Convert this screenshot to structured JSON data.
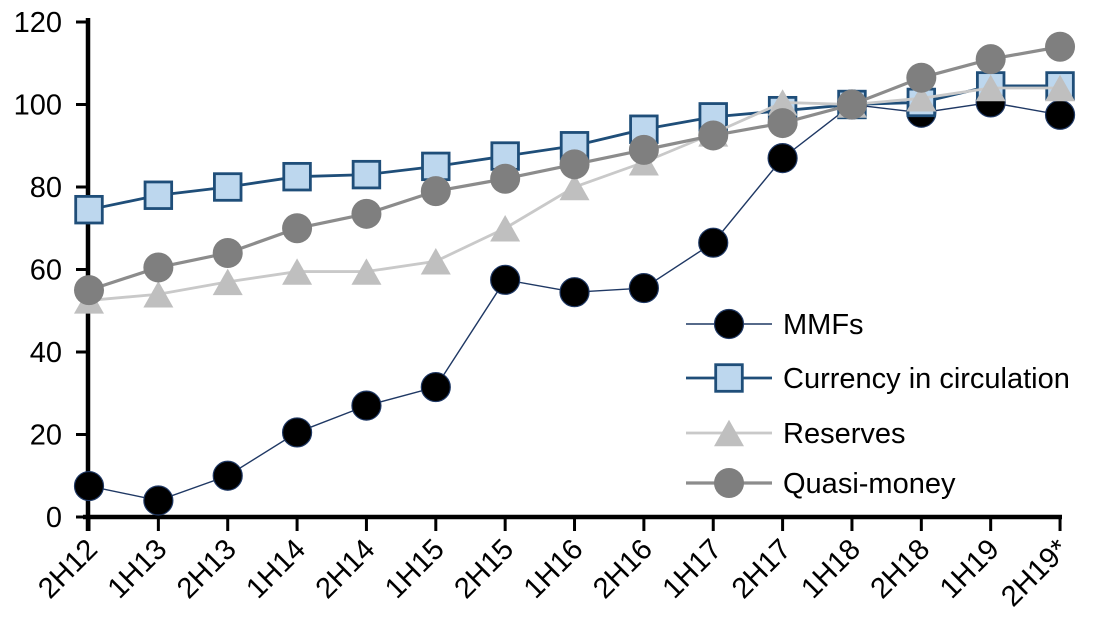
{
  "chart_data": {
    "type": "line",
    "title": "",
    "xlabel": "",
    "ylabel": "",
    "ylim": [
      0,
      120
    ],
    "yticks": [
      0,
      20,
      40,
      60,
      80,
      100,
      120
    ],
    "grid": false,
    "legend_position": "inside-right",
    "background_color": "#ffffff",
    "axis_color": "#000000",
    "categories": [
      "2H12",
      "1H13",
      "2H13",
      "1H14",
      "2H14",
      "1H15",
      "2H15",
      "1H16",
      "2H16",
      "1H17",
      "2H17",
      "1H18",
      "2H18",
      "1H19",
      "2H19*"
    ],
    "series": [
      {
        "name": "MMFs",
        "marker": "circle",
        "marker_color": "#000000",
        "marker_stroke": "#1F3864",
        "line_color": "#1F3864",
        "line_width": 1.4,
        "marker_size": 29,
        "values": [
          7.5,
          4,
          10,
          20.5,
          27,
          31.5,
          57.5,
          54.5,
          55.5,
          66.5,
          87,
          100,
          98,
          100.5,
          97.5
        ]
      },
      {
        "name": "Currency in circulation",
        "marker": "square",
        "marker_color": "#BDD7EE",
        "marker_stroke": "#1F4E79",
        "line_color": "#1F4E79",
        "line_width": 2.8,
        "marker_size": 28,
        "values": [
          74.5,
          78,
          80,
          82.5,
          83,
          85,
          87.5,
          90,
          94,
          97,
          98.5,
          100,
          100.5,
          104.5,
          104.5
        ]
      },
      {
        "name": "Reserves",
        "marker": "triangle",
        "marker_color": "#BFBFBF",
        "marker_stroke": "none",
        "line_color": "#C9C9C9",
        "line_width": 2.8,
        "marker_size": 30,
        "values": [
          52.5,
          54,
          57,
          59.5,
          59.5,
          62,
          70,
          80,
          86,
          93,
          100.5,
          100,
          101.5,
          104,
          104
        ]
      },
      {
        "name": "Quasi-money",
        "marker": "circle",
        "marker_color": "#7F7F7F",
        "marker_stroke": "none",
        "line_color": "#8C8C8C",
        "line_width": 3.2,
        "marker_size": 30,
        "values": [
          55,
          60.5,
          64,
          70,
          73.5,
          79,
          82,
          85.5,
          89,
          92.5,
          95.5,
          100,
          106.5,
          111,
          114
        ]
      }
    ]
  }
}
